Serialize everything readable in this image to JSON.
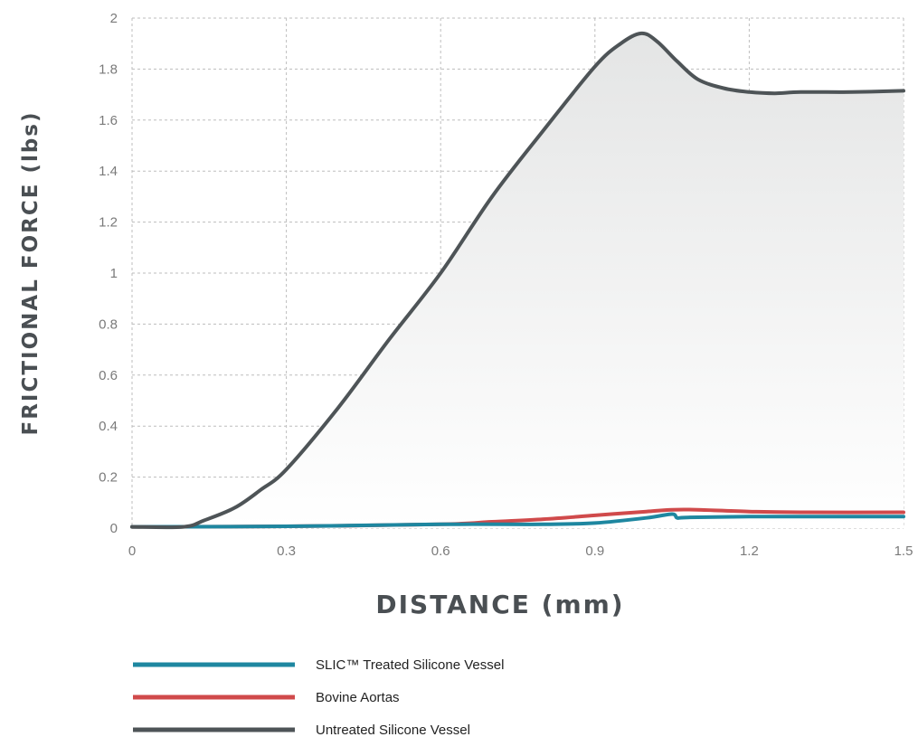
{
  "chart_data": {
    "type": "line",
    "xlabel": "DISTANCE (mm)",
    "ylabel": "FRICTIONAL FORCE (lbs)",
    "xlim": [
      0,
      1.5
    ],
    "ylim": [
      0,
      2
    ],
    "x_ticks": [
      "0",
      "0.3",
      "0.6",
      "0.9",
      "1.2",
      "1.5"
    ],
    "y_ticks": [
      "0",
      "0.2",
      "0.4",
      "0.6",
      "0.8",
      "1",
      "1.2",
      "1.4",
      "1.6",
      "1.8",
      "2"
    ],
    "grid": true,
    "legend_position": "bottom",
    "series": [
      {
        "name": "SLIC™ Treated Silicone Vessel",
        "color": "#1e87a0",
        "x": [
          0,
          0.3,
          0.6,
          0.8,
          0.9,
          1.0,
          1.05,
          1.06,
          1.08,
          1.2,
          1.3,
          1.5
        ],
        "y": [
          0.005,
          0.007,
          0.015,
          0.015,
          0.02,
          0.04,
          0.055,
          0.04,
          0.042,
          0.045,
          0.045,
          0.045
        ]
      },
      {
        "name": "Bovine Aortas",
        "color": "#d04a4b",
        "x": [
          0,
          0.3,
          0.6,
          0.7,
          0.8,
          0.9,
          1.0,
          1.05,
          1.1,
          1.2,
          1.3,
          1.5
        ],
        "y": [
          0.005,
          0.007,
          0.015,
          0.025,
          0.035,
          0.05,
          0.065,
          0.072,
          0.072,
          0.065,
          0.062,
          0.062
        ]
      },
      {
        "name": "Untreated Silicone Vessel",
        "color": "#4e5457",
        "x": [
          0,
          0.1,
          0.14,
          0.2,
          0.25,
          0.3,
          0.4,
          0.5,
          0.6,
          0.7,
          0.8,
          0.9,
          0.95,
          0.99,
          1.02,
          1.06,
          1.1,
          1.15,
          1.2,
          1.25,
          1.3,
          1.4,
          1.5
        ],
        "y": [
          0.005,
          0.005,
          0.03,
          0.08,
          0.15,
          0.23,
          0.47,
          0.74,
          1.0,
          1.3,
          1.56,
          1.81,
          1.9,
          1.94,
          1.91,
          1.83,
          1.76,
          1.725,
          1.71,
          1.705,
          1.71,
          1.71,
          1.715
        ]
      }
    ]
  }
}
